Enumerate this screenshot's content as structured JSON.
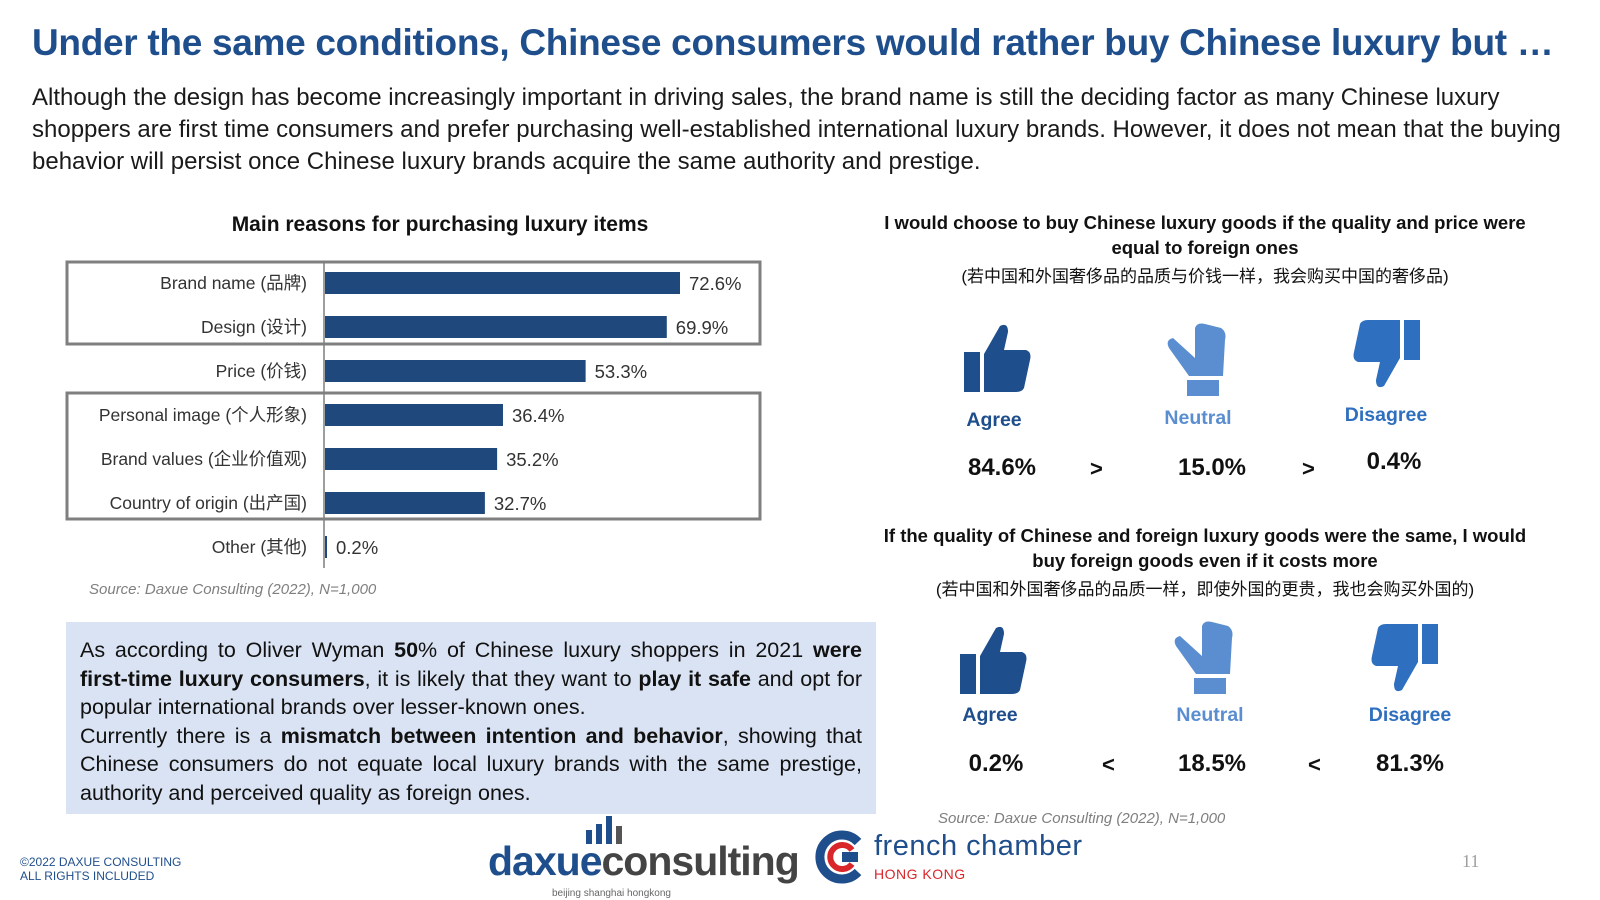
{
  "slide": {
    "title": "Under the same conditions, Chinese consumers would rather buy Chinese luxury but …",
    "subtitle": "Although the design has become increasingly important in driving sales, the brand name is still the deciding factor as many Chinese luxury shoppers are first time consumers and prefer purchasing well-established international luxury brands. However, it does not mean that the buying behavior will persist once Chinese luxury brands acquire the same authority and prestige."
  },
  "chart_data": {
    "type": "bar",
    "orientation": "horizontal",
    "title": "Main reasons for purchasing luxury items",
    "categories": [
      "Brand name (品牌)",
      "Design (设计)",
      "Price (价钱)",
      "Personal image (个人形象)",
      "Brand values (企业价值观)",
      "Country of origin (出产国)",
      "Other (其他)"
    ],
    "values": [
      72.6,
      69.9,
      53.3,
      36.4,
      35.2,
      32.7,
      0.2
    ],
    "value_labels": [
      "72.6%",
      "69.9%",
      "53.3%",
      "36.4%",
      "35.2%",
      "32.7%",
      "0.2%"
    ],
    "bar_color": "#1f497d",
    "source": "Source: Daxue Consulting (2022), N=1,000"
  },
  "callout": {
    "p1_a": "As according to  Oliver Wyman ",
    "p1_b": "50",
    "p1_c": "% of Chinese luxury shoppers in 2021 ",
    "p1_d": "were first-time luxury consumers",
    "p1_e": ", it is likely that they want to ",
    "p1_f": "play it safe",
    "p1_g": " and opt for popular international brands over lesser-known ones.",
    "p2_a": "Currently there is a ",
    "p2_b": "mismatch between intention and behavior",
    "p2_c": ", showing that Chinese consumers do not equate local luxury brands with the same prestige, authority and perceived quality as foreign ones."
  },
  "q1": {
    "title": "I would choose to buy Chinese luxury goods if the quality and price were equal to foreign ones",
    "subtitle": "(若中国和外国奢侈品的品质与价钱一样，我会购买中国的奢侈品)",
    "agree_label": "Agree",
    "neutral_label": "Neutral",
    "disagree_label": "Disagree",
    "agree_value": "84.6%",
    "neutral_value": "15.0%",
    "disagree_value": "0.4%",
    "cmp1": ">",
    "cmp2": ">"
  },
  "q2": {
    "title": "If the quality of Chinese and foreign luxury goods were the same, I would buy foreign goods even if it costs more",
    "subtitle": "(若中国和外国奢侈品的品质一样，即使外国的更贵，我也会购买外国的)",
    "agree_label": "Agree",
    "neutral_label": "Neutral",
    "disagree_label": "Disagree",
    "agree_value": "0.2%",
    "neutral_value": "18.5%",
    "disagree_value": "81.3%",
    "cmp1": "<",
    "cmp2": "<"
  },
  "right_source": "Source: Daxue Consulting (2022), N=1,000",
  "footer": {
    "copyright_1": "©2022 DAXUE CONSULTING",
    "copyright_2": "ALL RIGHTS INCLUDED",
    "daxue_part1": "daxue",
    "daxue_part2": "consulting",
    "daxue_tagline": "beijing shanghai hongkong",
    "fcc_name": "french chamber",
    "fcc_city": "HONG KONG",
    "page_number": "11"
  },
  "colors": {
    "title_blue": "#1f4e8c",
    "bar_blue": "#1f497d",
    "callout_bg": "#dae3f3",
    "agree": "#1f4e8c",
    "neutral": "#5b8ed0",
    "disagree": "#2e6fbf"
  },
  "icons": {
    "agree": "thumbs-up-icon",
    "neutral": "thumbs-sideways-icon",
    "disagree": "thumbs-down-icon"
  }
}
